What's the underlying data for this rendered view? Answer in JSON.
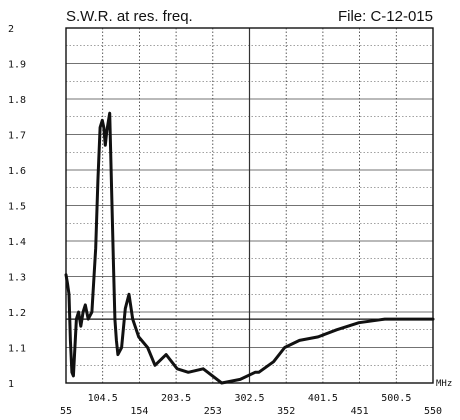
{
  "chart_data": {
    "type": "line",
    "title": "S.W.R. at res. freq.",
    "file_label": "File: C-12-015",
    "x_unit": "MHz",
    "xlim": [
      55,
      550
    ],
    "ylim": [
      1,
      2
    ],
    "x_ticks": [
      "55",
      "104.5",
      "154",
      "203.5",
      "253",
      "302.5",
      "352",
      "401.5",
      "451",
      "500.5",
      "550"
    ],
    "y_ticks": [
      "1",
      "1.1",
      "1.2",
      "1.3",
      "1.4",
      "1.5",
      "1.6",
      "1.7",
      "1.8",
      "1.9",
      "2"
    ],
    "grid": true,
    "reference_line_y": 1.18,
    "series": [
      {
        "x": [
          55,
          57,
          59,
          61,
          63,
          65,
          67,
          69,
          72,
          75,
          78,
          81,
          85,
          90,
          95,
          98,
          101,
          104,
          106,
          108,
          110,
          114,
          119,
          121,
          123,
          125,
          130,
          135,
          140,
          145,
          153,
          165,
          175,
          190,
          205,
          220,
          240,
          265,
          290,
          310,
          315,
          335,
          350,
          370,
          395,
          420,
          450,
          485,
          510,
          535,
          550
        ],
        "values": [
          1.305,
          1.28,
          1.25,
          1.12,
          1.03,
          1.02,
          1.1,
          1.18,
          1.2,
          1.16,
          1.2,
          1.22,
          1.18,
          1.2,
          1.38,
          1.57,
          1.72,
          1.74,
          1.72,
          1.67,
          1.71,
          1.76,
          1.33,
          1.18,
          1.12,
          1.08,
          1.1,
          1.21,
          1.25,
          1.18,
          1.13,
          1.1,
          1.05,
          1.08,
          1.04,
          1.03,
          1.04,
          1.0,
          1.01,
          1.03,
          1.03,
          1.06,
          1.1,
          1.12,
          1.13,
          1.15,
          1.17,
          1.18,
          1.18,
          1.18,
          1.18
        ]
      }
    ]
  }
}
